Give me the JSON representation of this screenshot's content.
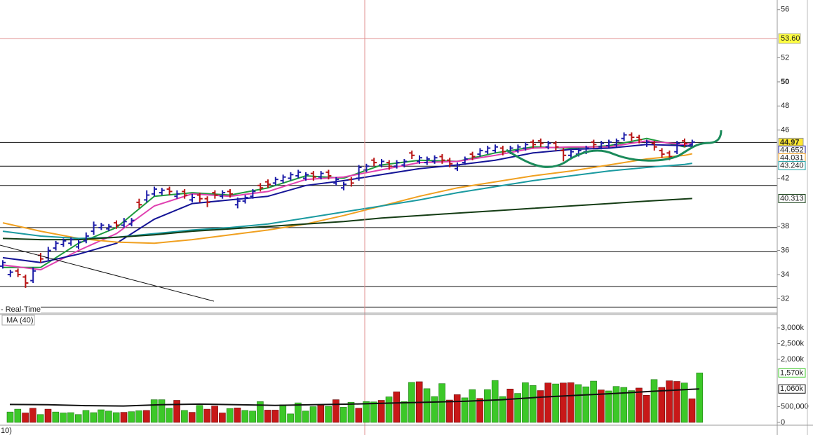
{
  "chart_data": [
    {
      "type": "ohlc",
      "subtitle": "- Real-Time",
      "open": [
        34.7,
        34.0,
        34.3,
        33.8,
        33.5,
        35.6,
        35.4,
        36.2,
        36.5,
        36.6,
        36.3,
        36.8,
        37.6,
        37.9,
        37.8,
        38.3,
        38.1,
        38.2,
        40.0,
        40.2,
        40.7,
        40.8,
        41.1,
        40.5,
        40.9,
        40.2,
        40.6,
        40.3,
        40.8,
        40.5,
        40.9,
        39.8,
        40.1,
        40.5,
        41.4,
        41.7,
        41.6,
        41.8,
        42.0,
        42.2,
        42.0,
        42.4,
        42.1,
        42.5,
        41.6,
        41.2,
        41.9,
        42.0,
        42.7,
        43.5,
        43.1,
        43.3,
        43.0,
        43.1,
        44.1,
        43.4,
        43.3,
        43.4,
        43.8,
        43.5,
        42.8,
        43.3,
        44.0,
        44.0,
        44.2,
        44.3,
        44.5,
        44.2,
        44.3,
        44.5,
        45.0,
        45.1,
        44.6,
        44.9,
        44.3,
        43.9,
        44.0,
        44.2,
        45.0,
        44.6,
        44.7,
        44.8,
        45.3,
        45.6,
        45.4,
        44.8,
        44.9,
        44.3,
        44.1,
        44.2,
        45.1,
        44.8
      ],
      "high": [
        35.2,
        34.4,
        34.5,
        34.0,
        34.6,
        35.8,
        36.3,
        36.8,
        37.0,
        37.1,
        36.9,
        37.5,
        38.4,
        38.3,
        38.2,
        38.5,
        38.7,
        38.7,
        40.3,
        41.0,
        41.3,
        41.2,
        41.3,
        41.0,
        41.1,
        40.7,
        40.8,
        40.5,
        41.0,
        41.0,
        41.1,
        40.4,
        40.6,
        41.1,
        41.6,
        41.9,
        42.1,
        42.3,
        42.5,
        42.7,
        42.5,
        42.6,
        42.6,
        42.7,
        42.1,
        41.7,
        42.1,
        43.1,
        43.2,
        43.7,
        43.6,
        43.5,
        43.5,
        43.6,
        44.3,
        43.9,
        43.8,
        43.9,
        44.0,
        43.7,
        43.3,
        43.8,
        44.2,
        44.5,
        44.7,
        44.8,
        44.7,
        44.7,
        44.8,
        45.0,
        45.2,
        45.3,
        45.1,
        45.1,
        44.5,
        44.4,
        44.5,
        44.7,
        45.2,
        45.1,
        45.2,
        45.3,
        45.8,
        45.8,
        45.6,
        45.2,
        45.1,
        44.5,
        44.3,
        45.1,
        45.3,
        45.2
      ],
      "low": [
        34.5,
        33.8,
        33.8,
        32.9,
        33.3,
        35.0,
        35.2,
        36.0,
        36.3,
        36.4,
        36.1,
        36.6,
        37.3,
        37.7,
        37.6,
        37.8,
        37.9,
        38.0,
        39.5,
        40.0,
        40.5,
        40.6,
        40.6,
        40.3,
        40.3,
        40.0,
        40.0,
        39.6,
        40.3,
        40.3,
        40.4,
        39.5,
        39.9,
        40.3,
        40.9,
        41.2,
        41.4,
        41.6,
        41.8,
        42.0,
        41.8,
        41.8,
        41.9,
        41.9,
        41.4,
        41.0,
        41.3,
        41.8,
        42.5,
        43.0,
        42.9,
        42.7,
        42.8,
        42.9,
        43.6,
        43.2,
        43.1,
        43.2,
        43.2,
        42.9,
        42.6,
        43.1,
        43.5,
        43.8,
        44.0,
        44.1,
        43.9,
        44.0,
        44.1,
        44.3,
        44.5,
        44.6,
        44.4,
        44.3,
        43.4,
        43.7,
        43.8,
        44.0,
        44.5,
        44.4,
        44.5,
        44.6,
        45.1,
        45.1,
        44.9,
        44.6,
        44.3,
        43.7,
        43.5,
        44.0,
        44.6,
        44.6
      ],
      "close": [
        35.0,
        34.2,
        34.0,
        33.3,
        34.3,
        35.3,
        36.0,
        36.6,
        36.8,
        36.9,
        36.7,
        37.2,
        38.1,
        38.1,
        38.0,
        38.1,
        38.4,
        38.5,
        39.8,
        40.6,
        41.1,
        41.0,
        40.9,
        40.7,
        40.6,
        40.4,
        40.3,
        40.0,
        40.6,
        40.8,
        40.7,
        40.1,
        40.4,
        40.9,
        41.2,
        41.5,
        41.9,
        42.1,
        42.3,
        42.5,
        42.3,
        42.1,
        42.4,
        42.2,
        41.9,
        41.5,
        41.6,
        42.9,
        43.0,
        43.3,
        43.4,
        43.0,
        43.3,
        43.4,
        43.9,
        43.7,
        43.6,
        43.7,
        43.5,
        43.2,
        43.1,
        43.6,
        43.8,
        44.3,
        44.5,
        44.6,
        44.2,
        44.5,
        44.6,
        44.8,
        44.8,
        44.9,
        44.9,
        44.6,
        43.9,
        44.2,
        44.3,
        44.5,
        44.8,
        44.9,
        45.0,
        45.1,
        45.6,
        45.4,
        45.2,
        45.0,
        44.6,
        44.0,
        43.8,
        44.9,
        44.9,
        45.0
      ],
      "up_color": "#1c1ca8",
      "down_color": "#b81414",
      "ylim": [
        30.8,
        56.8
      ],
      "yticks": [
        32,
        34,
        36,
        38,
        42,
        46,
        48,
        {
          "value": 50,
          "label": "50"
        },
        52,
        56
      ],
      "series": [
        {
          "color": "#1e9a3c",
          "x": [
            0,
            5,
            10,
            15,
            20,
            25,
            30,
            35,
            40,
            45,
            50,
            55,
            60,
            65,
            70,
            75,
            80,
            85,
            90,
            91
          ],
          "values": [
            34.6,
            34.6,
            36.6,
            37.9,
            40.5,
            40.8,
            40.6,
            41.2,
            42.2,
            42.0,
            43.1,
            43.5,
            43.4,
            44.1,
            44.6,
            44.5,
            44.7,
            45.3,
            44.6,
            44.8
          ]
        },
        {
          "color": "#e040b0",
          "x": [
            0,
            5,
            10,
            15,
            20,
            25,
            30,
            35,
            40,
            45,
            50,
            55,
            60,
            65,
            70,
            75,
            80,
            85,
            90,
            91
          ],
          "values": [
            34.8,
            34.4,
            36.0,
            37.4,
            39.7,
            40.7,
            40.5,
            40.9,
            41.9,
            42.1,
            42.7,
            43.3,
            43.4,
            43.9,
            44.5,
            44.6,
            44.6,
            45.1,
            44.8,
            44.9
          ]
        },
        {
          "color": "#141496",
          "x": [
            0,
            5,
            10,
            15,
            20,
            25,
            30,
            35,
            40,
            45,
            50,
            55,
            60,
            65,
            70,
            75,
            80,
            85,
            90,
            91
          ],
          "values": [
            35.4,
            35.0,
            35.7,
            36.6,
            38.6,
            39.9,
            40.2,
            40.5,
            41.4,
            41.8,
            42.3,
            42.8,
            43.1,
            43.5,
            44.1,
            44.4,
            44.5,
            44.8,
            44.7,
            44.652
          ]
        },
        {
          "color": "#f0a020",
          "x": [
            0,
            5,
            10,
            15,
            20,
            25,
            30,
            35,
            40,
            45,
            50,
            55,
            60,
            65,
            70,
            75,
            80,
            85,
            90,
            91
          ],
          "values": [
            38.3,
            37.6,
            37.0,
            36.7,
            36.6,
            36.9,
            37.3,
            37.7,
            38.2,
            38.9,
            39.7,
            40.5,
            41.2,
            41.7,
            42.2,
            42.6,
            43.1,
            43.6,
            43.9,
            44.031
          ]
        },
        {
          "color": "#1a9aa0",
          "x": [
            0,
            5,
            10,
            15,
            20,
            25,
            30,
            35,
            40,
            45,
            50,
            55,
            60,
            65,
            70,
            75,
            80,
            85,
            90,
            91
          ],
          "values": [
            37.6,
            37.2,
            37.0,
            37.1,
            37.4,
            37.7,
            37.9,
            38.2,
            38.7,
            39.2,
            39.7,
            40.2,
            40.8,
            41.3,
            41.8,
            42.2,
            42.6,
            42.9,
            43.15,
            43.24
          ]
        },
        {
          "color": "#143c14",
          "x": [
            0,
            5,
            10,
            15,
            20,
            25,
            30,
            35,
            40,
            45,
            50,
            55,
            60,
            65,
            70,
            75,
            80,
            85,
            90,
            91
          ],
          "values": [
            37.0,
            36.9,
            36.9,
            37.1,
            37.3,
            37.6,
            37.8,
            38.0,
            38.2,
            38.4,
            38.7,
            38.9,
            39.1,
            39.3,
            39.5,
            39.7,
            39.9,
            40.1,
            40.28,
            40.313
          ]
        }
      ],
      "horizontal_lines": [
        44.97,
        43.0,
        41.4,
        37.9,
        35.9,
        33.0,
        31.3
      ],
      "crosshair": {
        "value": 53.6,
        "label": "53.60"
      },
      "badges": [
        {
          "value": 44.97,
          "label": "44.97",
          "color": "#ffe830"
        },
        {
          "value": 44.652,
          "label": "44.652",
          "color": "#141496"
        },
        {
          "value": 44.031,
          "label": "44.031",
          "color": "#f0a020"
        },
        {
          "value": 43.24,
          "label": "43.240",
          "color": "#1a9aa0"
        },
        {
          "value": 40.313,
          "label": "40.313",
          "color": "#143c14"
        }
      ]
    },
    {
      "type": "volume",
      "series_label": "MA (40)",
      "values": [
        330000,
        420000,
        300000,
        450000,
        250000,
        420000,
        330000,
        300000,
        310000,
        250000,
        380000,
        310000,
        400000,
        360000,
        310000,
        320000,
        340000,
        370000,
        380000,
        720000,
        720000,
        450000,
        700000,
        380000,
        320000,
        540000,
        420000,
        520000,
        300000,
        440000,
        460000,
        380000,
        360000,
        660000,
        390000,
        390000,
        560000,
        270000,
        620000,
        360000,
        500000,
        550000,
        510000,
        720000,
        480000,
        640000,
        450000,
        660000,
        650000,
        700000,
        810000,
        970000,
        660000,
        1270000,
        1290000,
        1070000,
        820000,
        1230000,
        710000,
        880000,
        780000,
        1040000,
        760000,
        1040000,
        1330000,
        820000,
        1060000,
        920000,
        1260000,
        1170000,
        1010000,
        1250000,
        1220000,
        1250000,
        1260000,
        1200000,
        1130000,
        1310000,
        1030000,
        1000000,
        1140000,
        1110000,
        1010000,
        1090000,
        860000,
        1360000,
        1110000,
        1320000,
        1300000,
        1250000,
        750000,
        1570000
      ],
      "up_color": "#3cc828",
      "down_color": "#c81818",
      "ma": {
        "color": "#111111",
        "x": [
          0,
          5,
          10,
          15,
          20,
          25,
          30,
          35,
          40,
          45,
          50,
          55,
          60,
          65,
          70,
          75,
          80,
          85,
          90,
          91
        ],
        "values": [
          570000,
          560000,
          530000,
          520000,
          560000,
          580000,
          560000,
          540000,
          560000,
          580000,
          610000,
          640000,
          670000,
          720000,
          800000,
          860000,
          920000,
          990000,
          1050000,
          1060000
        ]
      },
      "ylim": [
        0,
        3400000
      ],
      "yticks": [
        0,
        {
          "value": 500000,
          "label": "500,000"
        },
        {
          "value": 2000000,
          "label": "2,000k"
        },
        {
          "value": 2500000,
          "label": "2,500k"
        },
        {
          "value": 3000000,
          "label": "3,000k"
        }
      ],
      "badges": [
        {
          "value": 1060000,
          "label": "1,060k",
          "color": "#111111"
        },
        {
          "value": 1570000,
          "label": "1,570k",
          "color": "#3cc828"
        }
      ]
    }
  ],
  "footer_label": "10)"
}
